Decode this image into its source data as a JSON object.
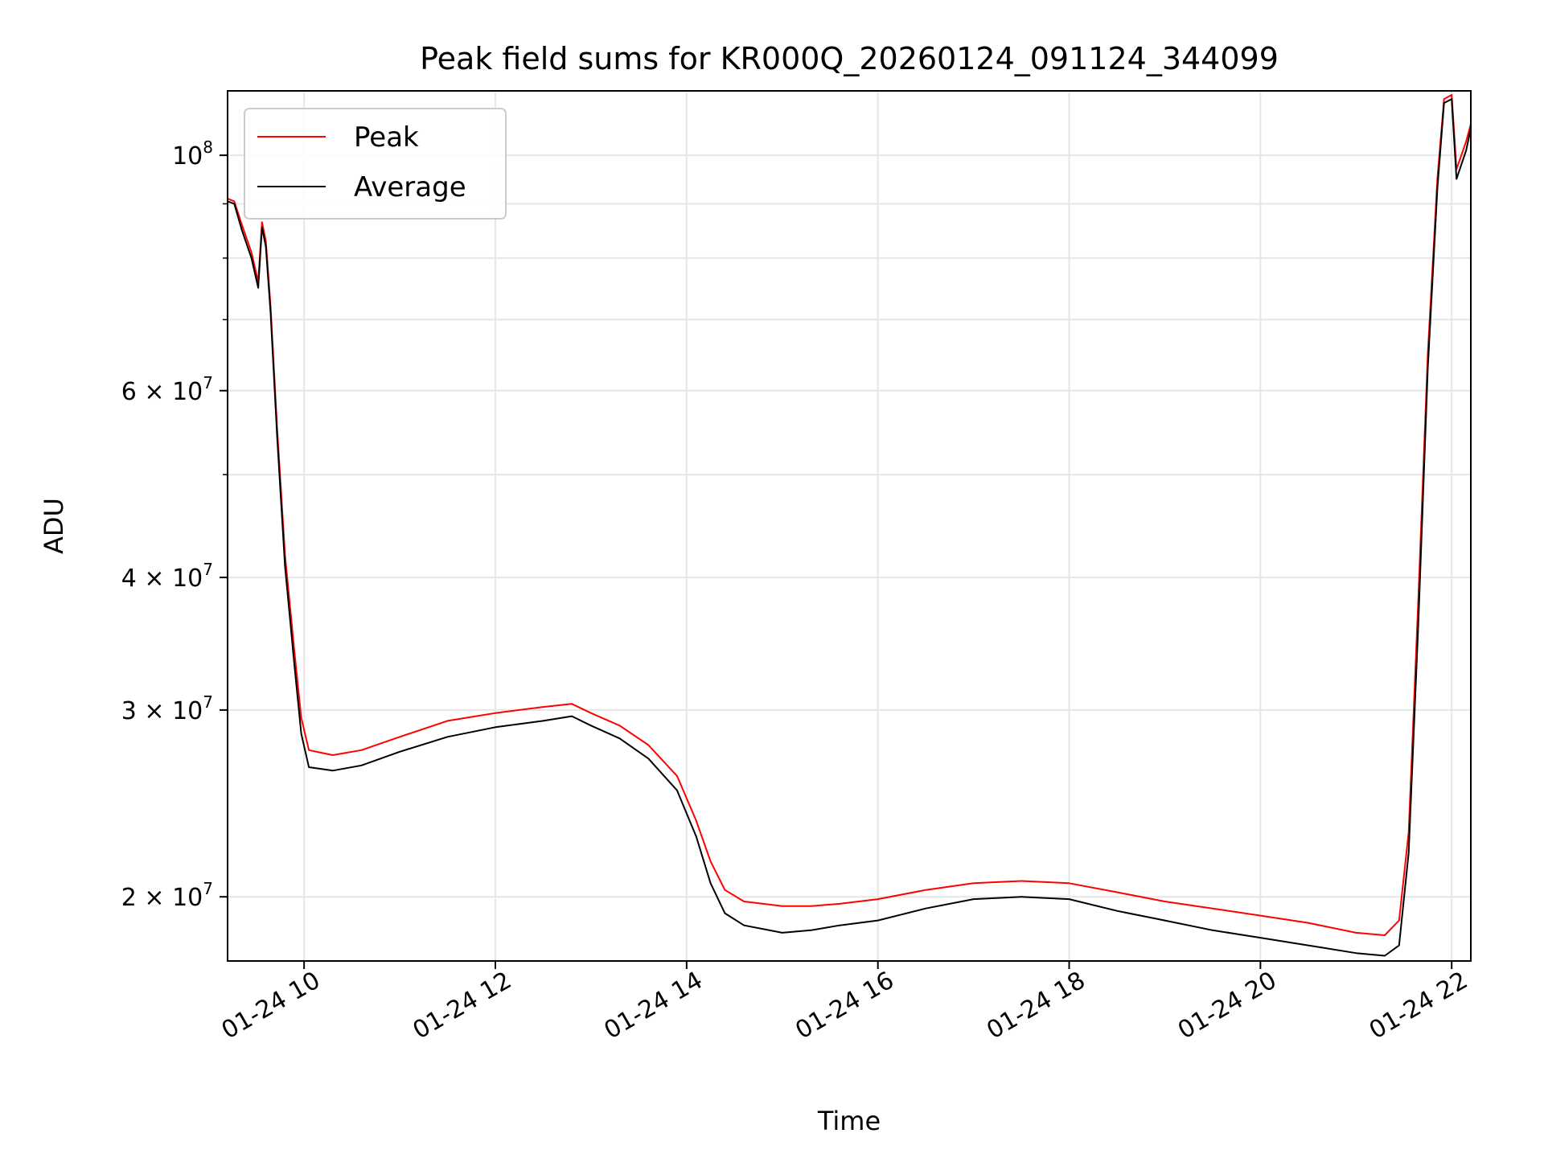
{
  "chart_data": {
    "type": "line",
    "title": "Peak field sums for KR000Q_20260124_091124_344099",
    "xlabel": "Time",
    "ylabel": "ADU",
    "yscale": "log",
    "ylim": [
      17400000,
      115000000
    ],
    "xlim_hours": [
      9.2,
      22.2
    ],
    "grid": true,
    "legend_position": "upper-left",
    "x_ticks": [
      {
        "hour": 10,
        "label": "01-24 10"
      },
      {
        "hour": 12,
        "label": "01-24 12"
      },
      {
        "hour": 14,
        "label": "01-24 14"
      },
      {
        "hour": 16,
        "label": "01-24 16"
      },
      {
        "hour": 18,
        "label": "01-24 18"
      },
      {
        "hour": 20,
        "label": "01-24 20"
      },
      {
        "hour": 22,
        "label": "01-24 22"
      }
    ],
    "y_ticks": [
      {
        "value": 100000000,
        "base": "10",
        "exp": "8"
      },
      {
        "value": 60000000,
        "base": "6 × 10",
        "exp": "7"
      },
      {
        "value": 40000000,
        "base": "4 × 10",
        "exp": "7"
      },
      {
        "value": 30000000,
        "base": "3 × 10",
        "exp": "7"
      },
      {
        "value": 20000000,
        "base": "2 × 10",
        "exp": "7"
      }
    ],
    "series": [
      {
        "name": "Peak",
        "color": "#ff0000",
        "x": [
          9.2,
          9.27,
          9.35,
          9.45,
          9.52,
          9.56,
          9.6,
          9.65,
          9.72,
          9.8,
          9.9,
          9.97,
          10.05,
          10.3,
          10.6,
          11.0,
          11.5,
          12.0,
          12.5,
          12.8,
          13.0,
          13.3,
          13.6,
          13.9,
          14.1,
          14.25,
          14.4,
          14.6,
          15.0,
          15.3,
          15.6,
          16.0,
          16.5,
          17.0,
          17.5,
          18.0,
          18.5,
          19.0,
          19.5,
          20.0,
          20.5,
          21.0,
          21.3,
          21.45,
          21.55,
          21.65,
          21.75,
          21.85,
          21.92,
          22.0,
          22.05,
          22.15,
          22.2
        ],
        "y": [
          91000000,
          90500000,
          86000000,
          81000000,
          76000000,
          86500000,
          83000000,
          72000000,
          55000000,
          42000000,
          34000000,
          29500000,
          27500000,
          27200000,
          27500000,
          28300000,
          29300000,
          29800000,
          30200000,
          30400000,
          29800000,
          29000000,
          27800000,
          26000000,
          23600000,
          21600000,
          20300000,
          19800000,
          19600000,
          19600000,
          19700000,
          19900000,
          20300000,
          20600000,
          20700000,
          20600000,
          20200000,
          19800000,
          19500000,
          19200000,
          18900000,
          18500000,
          18400000,
          19000000,
          23000000,
          38000000,
          65000000,
          95000000,
          113000000,
          114000000,
          97000000,
          103000000,
          107000000
        ]
      },
      {
        "name": "Average",
        "color": "#000000",
        "x": [
          9.2,
          9.27,
          9.35,
          9.45,
          9.52,
          9.56,
          9.6,
          9.65,
          9.72,
          9.8,
          9.9,
          9.97,
          10.05,
          10.3,
          10.6,
          11.0,
          11.5,
          12.0,
          12.5,
          12.8,
          13.0,
          13.3,
          13.6,
          13.9,
          14.1,
          14.25,
          14.4,
          14.6,
          15.0,
          15.3,
          15.6,
          16.0,
          16.5,
          17.0,
          17.5,
          18.0,
          18.5,
          19.0,
          19.5,
          20.0,
          20.5,
          21.0,
          21.3,
          21.45,
          21.55,
          21.65,
          21.75,
          21.85,
          21.92,
          22.0,
          22.05,
          22.15,
          22.2
        ],
        "y": [
          90500000,
          90000000,
          85000000,
          80000000,
          75000000,
          85500000,
          82000000,
          71000000,
          54000000,
          41000000,
          33000000,
          28500000,
          26500000,
          26300000,
          26600000,
          27400000,
          28300000,
          28900000,
          29300000,
          29600000,
          29000000,
          28200000,
          27000000,
          25200000,
          22800000,
          20600000,
          19300000,
          18800000,
          18500000,
          18600000,
          18800000,
          19000000,
          19500000,
          19900000,
          20000000,
          19900000,
          19400000,
          19000000,
          18600000,
          18300000,
          18000000,
          17700000,
          17600000,
          18000000,
          22000000,
          36000000,
          63000000,
          93000000,
          112000000,
          113000000,
          95000000,
          101000000,
          106000000
        ]
      }
    ]
  }
}
